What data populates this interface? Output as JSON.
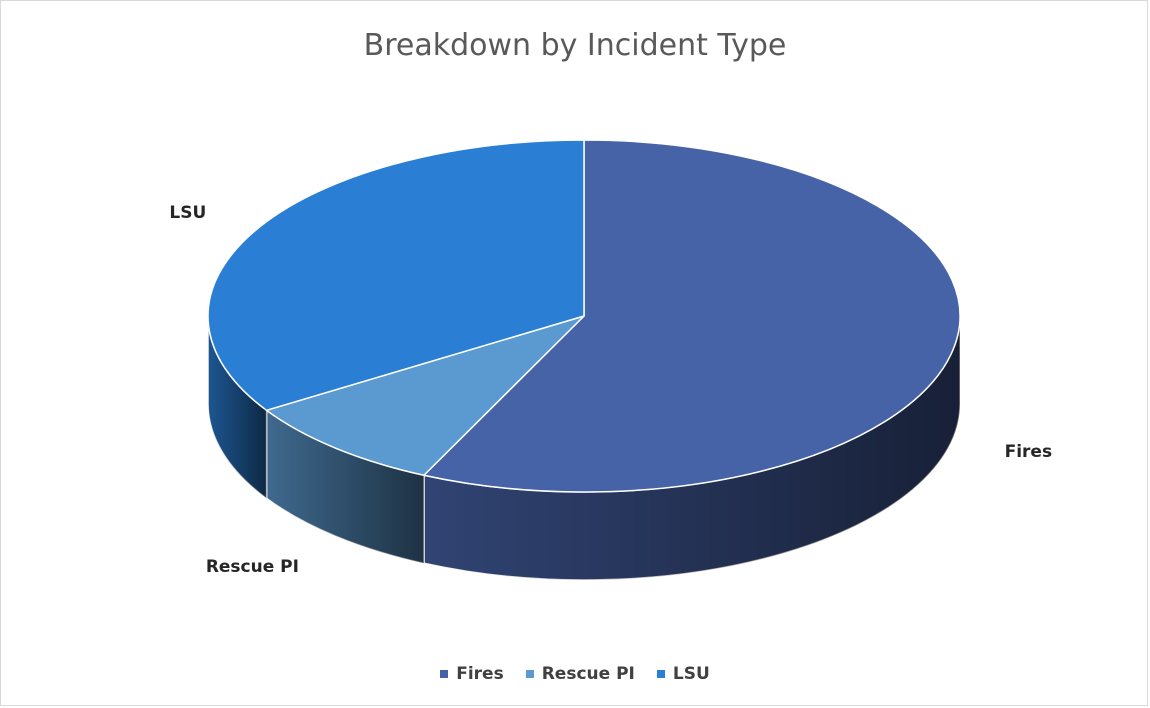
{
  "chart_data": {
    "type": "pie",
    "title": "Breakdown by Incident Type",
    "slices": [
      {
        "label": "Fires",
        "value": 57,
        "color": "#4763A8"
      },
      {
        "label": "Rescue PI",
        "value": 9,
        "color": "#5B9AD0"
      },
      {
        "label": "LSU",
        "value": 34,
        "color": "#2A7ED4"
      }
    ],
    "legend_position": "bottom",
    "style": "3d-pie"
  }
}
